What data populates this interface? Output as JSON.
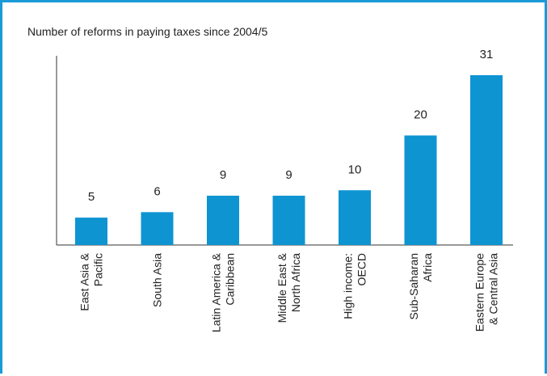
{
  "chart_data": {
    "type": "bar",
    "title": "Number of reforms in paying taxes since 2004/5",
    "xlabel": "",
    "ylabel": "",
    "categories": [
      [
        "East Asia &",
        "Pacific"
      ],
      [
        "South Asia"
      ],
      [
        "Latin America &",
        "Caribbean"
      ],
      [
        "Middle East &",
        "North Africa"
      ],
      [
        "High income:",
        "OECD"
      ],
      [
        "Sub-Saharan",
        "Africa"
      ],
      [
        "Eastern Europe",
        "& Central Asia"
      ]
    ],
    "values": [
      5,
      6,
      9,
      9,
      10,
      20,
      31
    ],
    "ylim": [
      0,
      40
    ],
    "grid": false,
    "colors": {
      "bar": "#0f94d2",
      "frame": "#1a9ad6",
      "axis": "#333333"
    }
  }
}
